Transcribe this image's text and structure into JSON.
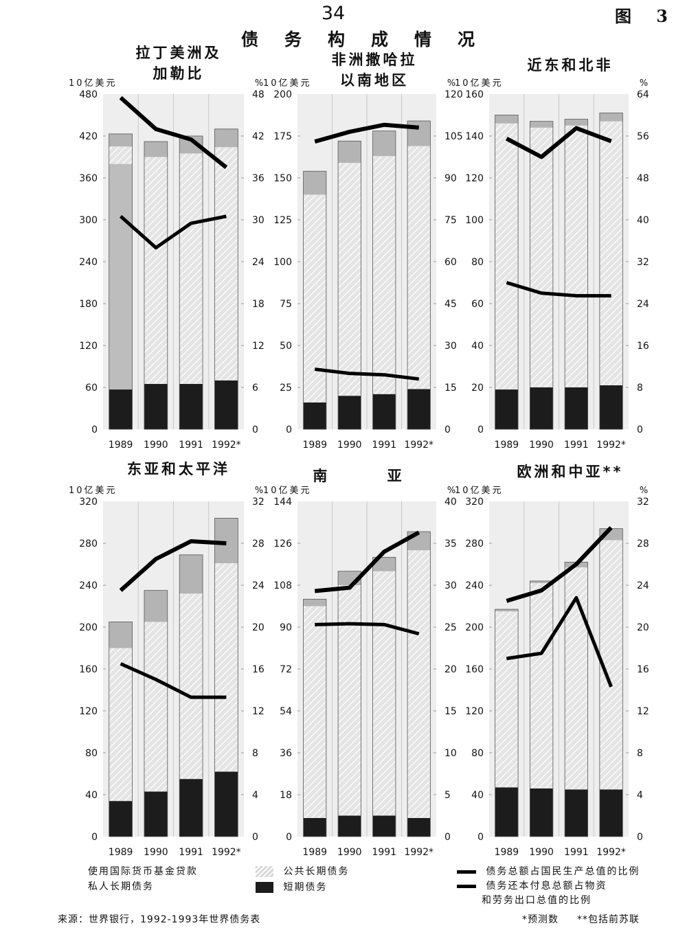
{
  "page_number": "34",
  "figure_label": "图 3",
  "main_title": "债务构成情况",
  "chart_data": [
    {
      "type": "bar",
      "title": "拉丁美洲及\n加勒比",
      "categories": [
        "1989",
        "1990",
        "1991",
        "1992*"
      ],
      "left_unit": "10亿美元",
      "right_unit": "%",
      "ylim_left": [
        0,
        480
      ],
      "ylim_right": [
        0,
        48
      ],
      "left_ticks": [
        "0",
        "60",
        "120",
        "180",
        "240",
        "300",
        "360",
        "420",
        "480"
      ],
      "right_ticks": [
        "0",
        "6",
        "12",
        "18",
        "24",
        "30",
        "36",
        "42",
        "48"
      ],
      "stacked_series": [
        {
          "name": "短期债务",
          "values": [
            57,
            65,
            65,
            70
          ]
        },
        {
          "name": "私人长期债务",
          "values": [
            323,
            0,
            0,
            0
          ]
        },
        {
          "name": "公共长期债务",
          "values": [
            25,
            325,
            330,
            334
          ]
        },
        {
          "name": "使用国际货币基金贷款",
          "values": [
            18,
            22,
            25,
            26
          ]
        }
      ],
      "line_series": [
        {
          "name": "债务总额占国民生产总值的比例",
          "values": [
            47.5,
            43,
            41.5,
            37.5
          ]
        },
        {
          "name": "债务还本付息总额占物资和劳务出口总值的比例",
          "values": [
            30.5,
            26,
            29.5,
            30.5
          ]
        }
      ]
    },
    {
      "type": "bar",
      "title": "非洲撒哈拉\n以南地区",
      "categories": [
        "1989",
        "1990",
        "1991",
        "1992*"
      ],
      "left_unit": "10亿美元",
      "right_unit": "%",
      "ylim_left": [
        0,
        200
      ],
      "ylim_right": [
        0,
        120
      ],
      "left_ticks": [
        "0",
        "25",
        "50",
        "75",
        "100",
        "125",
        "150",
        "175",
        "200"
      ],
      "right_ticks": [
        "0",
        "15",
        "30",
        "45",
        "60",
        "75",
        "90",
        "105",
        "120"
      ],
      "stacked_series": [
        {
          "name": "短期债务",
          "values": [
            16,
            20,
            21,
            24
          ]
        },
        {
          "name": "私人长期债务",
          "values": [
            0,
            0,
            0,
            0
          ]
        },
        {
          "name": "公共长期债务",
          "values": [
            124,
            139,
            142,
            145
          ]
        },
        {
          "name": "使用国际货币基金贷款",
          "values": [
            14,
            13,
            15,
            15
          ]
        }
      ],
      "line_series": [
        {
          "name": "债务总额占国民生产总值的比例",
          "values": [
            103,
            106.5,
            109,
            108
          ]
        },
        {
          "name": "债务还本付息总额占物资和劳务出口总值的比例",
          "values": [
            21.5,
            20,
            19.5,
            18
          ]
        }
      ]
    },
    {
      "type": "bar",
      "title": "近东和北非",
      "categories": [
        "1989",
        "1990",
        "1991",
        "1992*"
      ],
      "left_unit": "10亿美元",
      "right_unit": "%",
      "ylim_left": [
        0,
        160
      ],
      "ylim_right": [
        0,
        64
      ],
      "left_ticks": [
        "0",
        "20",
        "40",
        "60",
        "80",
        "100",
        "120",
        "140",
        "160"
      ],
      "right_ticks": [
        "0",
        "8",
        "16",
        "24",
        "32",
        "40",
        "48",
        "56",
        "64"
      ],
      "stacked_series": [
        {
          "name": "短期债务",
          "values": [
            19,
            20,
            20,
            21
          ]
        },
        {
          "name": "私人长期债务",
          "values": [
            0,
            0,
            0,
            0
          ]
        },
        {
          "name": "公共长期债务",
          "values": [
            127,
            124,
            125,
            126
          ]
        },
        {
          "name": "使用国际货币基金贷款",
          "values": [
            4,
            3,
            3,
            4
          ]
        }
      ],
      "line_series": [
        {
          "name": "债务总额占国民生产总值的比例",
          "values": [
            55.5,
            52,
            57.5,
            55
          ]
        },
        {
          "name": "债务还本付息总额占物资和劳务出口总值的比例",
          "values": [
            28,
            26,
            25.5,
            25.5
          ]
        }
      ]
    },
    {
      "type": "bar",
      "title": "东亚和太平洋",
      "categories": [
        "1989",
        "1990",
        "1991",
        "1992*"
      ],
      "left_unit": "10亿美元",
      "right_unit": "%",
      "ylim_left": [
        0,
        320
      ],
      "ylim_right": [
        0,
        32
      ],
      "left_ticks": [
        "0",
        "40",
        "80",
        "120",
        "160",
        "200",
        "240",
        "280",
        "320"
      ],
      "right_ticks": [
        "0",
        "4",
        "8",
        "12",
        "16",
        "20",
        "24",
        "28",
        "32"
      ],
      "stacked_series": [
        {
          "name": "短期债务",
          "values": [
            34,
            43,
            55,
            62
          ]
        },
        {
          "name": "私人长期债务",
          "values": [
            0,
            0,
            0,
            0
          ]
        },
        {
          "name": "公共长期债务",
          "values": [
            146,
            162,
            177,
            199
          ]
        },
        {
          "name": "使用国际货币基金贷款",
          "values": [
            25,
            30,
            37,
            43
          ]
        }
      ],
      "line_series": [
        {
          "name": "债务总额占国民生产总值的比例",
          "values": [
            23.5,
            26.5,
            28.2,
            28
          ]
        },
        {
          "name": "债务还本付息总额占物资和劳务出口总值的比例",
          "values": [
            16.5,
            15,
            13.3,
            13.3
          ]
        }
      ]
    },
    {
      "type": "bar",
      "title": "南 亚",
      "categories": [
        "1989",
        "1990",
        "1991",
        "1992*"
      ],
      "left_unit": "10亿美元",
      "right_unit": "%",
      "ylim_left": [
        0,
        144
      ],
      "ylim_right": [
        0,
        40
      ],
      "left_ticks": [
        "0",
        "18",
        "36",
        "54",
        "72",
        "90",
        "108",
        "126",
        "144"
      ],
      "right_ticks": [
        "0",
        "5",
        "10",
        "15",
        "20",
        "25",
        "30",
        "35",
        "40"
      ],
      "stacked_series": [
        {
          "name": "短期债务",
          "values": [
            8,
            9,
            9,
            8
          ]
        },
        {
          "name": "私人长期债务",
          "values": [
            0,
            0,
            0,
            0
          ]
        },
        {
          "name": "公共长期债务",
          "values": [
            91,
            99,
            105,
            115
          ]
        },
        {
          "name": "使用国际货币基金贷款",
          "values": [
            3,
            6,
            6,
            8
          ]
        }
      ],
      "line_series": [
        {
          "name": "债务总额占国民生产总值的比例",
          "values": [
            29.3,
            29.7,
            34,
            36.3
          ]
        },
        {
          "name": "债务还本付息总额占物资和劳务出口总值的比例",
          "values": [
            25.3,
            25.4,
            25.3,
            24.2
          ]
        }
      ]
    },
    {
      "type": "bar",
      "title": "欧洲和中亚**",
      "categories": [
        "1989",
        "1990",
        "1991",
        "1992*"
      ],
      "left_unit": "10亿美元",
      "right_unit": "%",
      "ylim_left": [
        0,
        320
      ],
      "ylim_right": [
        0,
        32
      ],
      "left_ticks": [
        "0",
        "40",
        "80",
        "120",
        "160",
        "200",
        "240",
        "280",
        "320"
      ],
      "right_ticks": [
        "0",
        "4",
        "8",
        "12",
        "16",
        "20",
        "24",
        "28",
        "32"
      ],
      "stacked_series": [
        {
          "name": "短期债务",
          "values": [
            47,
            46,
            45,
            45
          ]
        },
        {
          "name": "私人长期债务",
          "values": [
            0,
            0,
            0,
            0
          ]
        },
        {
          "name": "公共长期债务",
          "values": [
            168,
            196,
            212,
            238
          ]
        },
        {
          "name": "使用国际货币基金贷款",
          "values": [
            2,
            2,
            5,
            11
          ]
        }
      ],
      "line_series": [
        {
          "name": "债务总额占国民生产总值的比例",
          "values": [
            22.5,
            23.5,
            26,
            29.5
          ]
        },
        {
          "name": "债务还本付息总额占物资和劳务出口总值的比例",
          "values": [
            17,
            17.5,
            22.8,
            14.3
          ]
        }
      ]
    }
  ],
  "legend": {
    "imf": "使用国际货币基金贷款",
    "private": "私人长期债务",
    "public": "公共长期债务",
    "short": "短期债务",
    "line1": "债务总额占国民生产总值的比例",
    "line2a": "债务还本付息总额占物资",
    "line2b": "和劳务出口总值的比例"
  },
  "footer": {
    "source": "来源：世界银行，1992-1993年世界债务表",
    "note_forecast": "*预测数",
    "note_ussr": "**包括前苏联"
  },
  "colors": {
    "short_term": "#1c1c1c",
    "imf": "#b4b4b4",
    "private_long_term": "#bdbdbd",
    "public_long_term_bg": "#e4e4e4",
    "public_long_term_hatch": "#ffffff",
    "panel_bg": "#eeeeee",
    "lines": "#000000"
  }
}
